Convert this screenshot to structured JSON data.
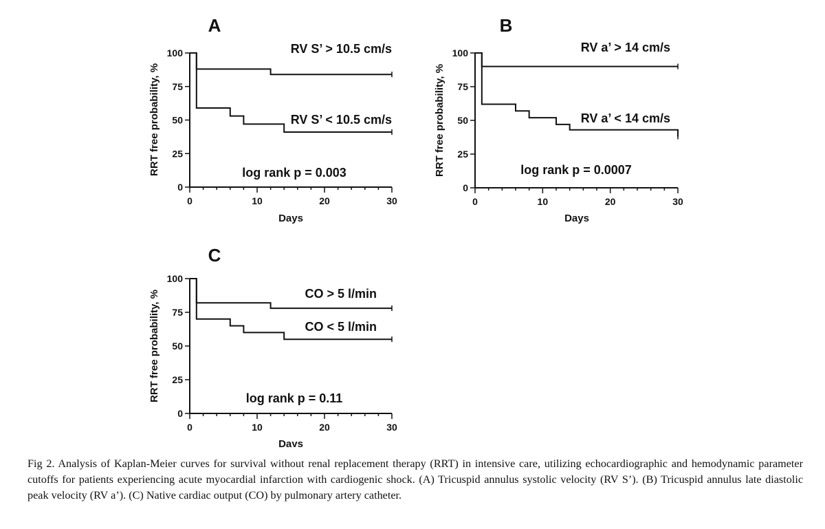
{
  "chart_data": [
    {
      "type": "line",
      "panel": "A",
      "xlabel": "Days",
      "ylabel": "RRT free probability, %",
      "xlim": [
        0,
        30
      ],
      "ylim": [
        0,
        100
      ],
      "xticks": [
        0,
        10,
        20,
        30
      ],
      "yticks": [
        0,
        25,
        50,
        75,
        100
      ],
      "series": [
        {
          "name": "RV S’ > 10.5 cm/s",
          "steps": [
            [
              0,
              100
            ],
            [
              1,
              88
            ],
            [
              12,
              84
            ],
            [
              30,
              84
            ]
          ]
        },
        {
          "name": "RV S’ < 10.5 cm/s",
          "steps": [
            [
              0,
              100
            ],
            [
              1,
              59
            ],
            [
              6,
              53
            ],
            [
              8,
              47
            ],
            [
              14,
              41
            ],
            [
              30,
              41
            ]
          ]
        }
      ],
      "annotation": "log rank p = 0.003"
    },
    {
      "type": "line",
      "panel": "B",
      "xlabel": "Days",
      "ylabel": "RRT free probability, %",
      "xlim": [
        0,
        30
      ],
      "ylim": [
        0,
        100
      ],
      "xticks": [
        0,
        10,
        20,
        30
      ],
      "yticks": [
        0,
        25,
        50,
        75,
        100
      ],
      "series": [
        {
          "name": "RV a’ > 14 cm/s",
          "steps": [
            [
              0,
              100
            ],
            [
              1,
              90
            ],
            [
              30,
              90
            ]
          ]
        },
        {
          "name": "RV a’ < 14 cm/s",
          "steps": [
            [
              0,
              100
            ],
            [
              1,
              62
            ],
            [
              6,
              57
            ],
            [
              8,
              52
            ],
            [
              12,
              47
            ],
            [
              14,
              43
            ],
            [
              30,
              38
            ]
          ]
        }
      ],
      "annotation": "log rank p =  0.0007"
    },
    {
      "type": "line",
      "panel": "C",
      "xlabel": "Days",
      "ylabel": "RRT free probability, %",
      "xlim": [
        0,
        30
      ],
      "ylim": [
        0,
        100
      ],
      "xticks": [
        0,
        10,
        20,
        30
      ],
      "yticks": [
        0,
        25,
        50,
        75,
        100
      ],
      "series": [
        {
          "name": "CO > 5 l/min",
          "steps": [
            [
              0,
              100
            ],
            [
              1,
              82
            ],
            [
              12,
              78
            ],
            [
              30,
              78
            ]
          ]
        },
        {
          "name": "CO < 5 l/min",
          "steps": [
            [
              0,
              100
            ],
            [
              1,
              70
            ],
            [
              6,
              65
            ],
            [
              8,
              60
            ],
            [
              14,
              55
            ],
            [
              30,
              55
            ]
          ]
        }
      ],
      "annotation": "log rank p = 0.11"
    }
  ],
  "caption": "Fig 2.  Analysis of Kaplan-Meier curves for survival without renal replacement therapy (RRT) in intensive care, utilizing echocardiographic and hemodynamic parameter cutoffs for patients experiencing acute myocardial infarction with cardiogenic shock. (A) Tricuspid annulus systolic velocity (RV S’). (B) Tricuspid annulus late diastolic peak velocity (RV a’). (C) Native cardiac output (CO) by pulmonary artery catheter."
}
